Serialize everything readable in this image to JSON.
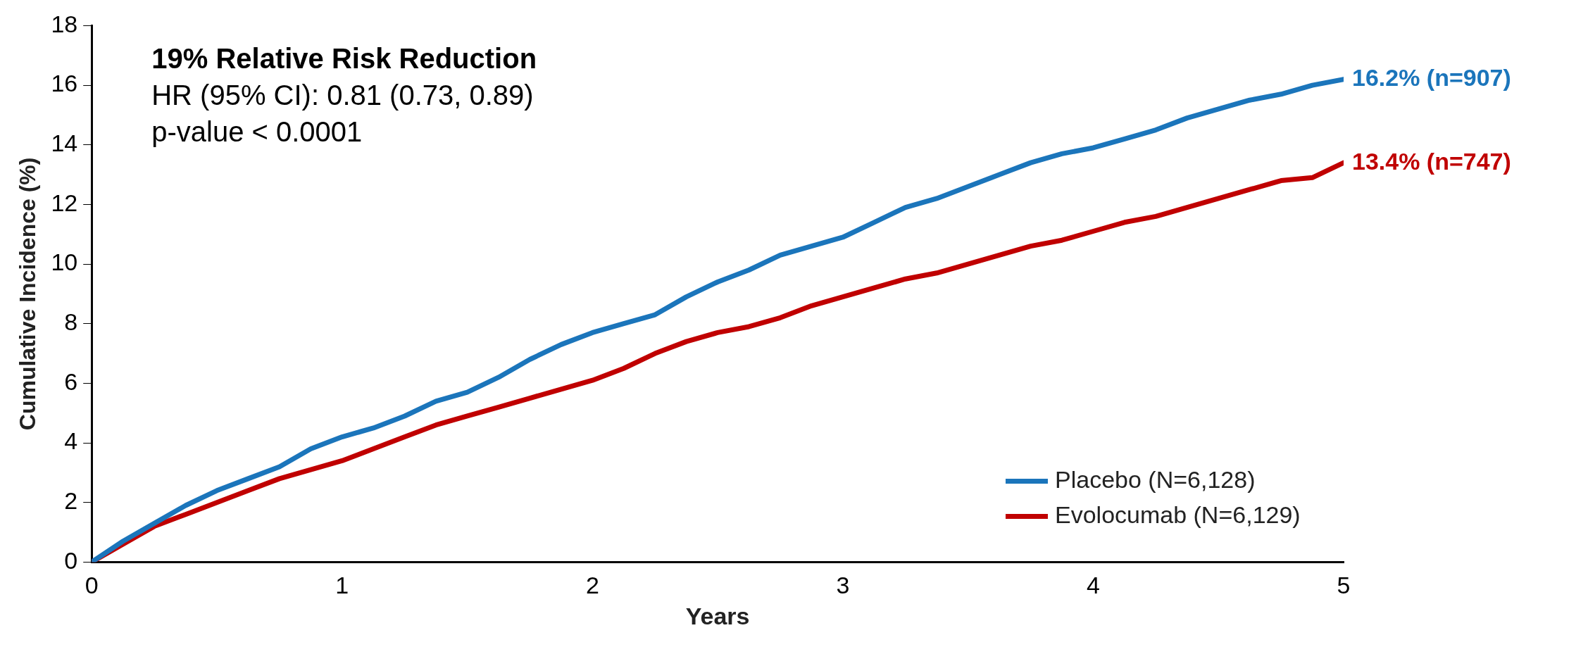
{
  "chart_data": {
    "type": "line",
    "xlabel": "Years",
    "ylabel": "Cumulative Incidence (%)",
    "xlim": [
      0,
      5
    ],
    "xticks": [
      0,
      1,
      2,
      3,
      4,
      5
    ],
    "ylim": [
      0,
      18
    ],
    "yticks": [
      0,
      2,
      4,
      6,
      8,
      10,
      12,
      14,
      16,
      18
    ],
    "grid": false,
    "legend": "bottom right",
    "marker": "none",
    "line_style": "solid",
    "x": [
      0,
      0.125,
      0.25,
      0.375,
      0.5,
      0.625,
      0.75,
      0.875,
      1,
      1.125,
      1.25,
      1.375,
      1.5,
      1.625,
      1.75,
      1.875,
      2,
      2.125,
      2.25,
      2.375,
      2.5,
      2.625,
      2.75,
      2.875,
      3,
      3.125,
      3.25,
      3.375,
      3.5,
      3.625,
      3.75,
      3.875,
      4,
      4.125,
      4.25,
      4.375,
      4.5,
      4.625,
      4.75,
      4.875,
      5
    ],
    "series": [
      {
        "name": "Placebo (N=6,128)",
        "color": "#1b75bb",
        "values": [
          0,
          0.7,
          1.3,
          1.9,
          2.4,
          2.8,
          3.2,
          3.8,
          4.2,
          4.5,
          4.9,
          5.4,
          5.7,
          6.2,
          6.8,
          7.3,
          7.7,
          8.0,
          8.3,
          8.9,
          9.4,
          9.8,
          10.3,
          10.6,
          10.9,
          11.4,
          11.9,
          12.2,
          12.6,
          13.0,
          13.4,
          13.7,
          13.9,
          14.2,
          14.5,
          14.9,
          15.2,
          15.5,
          15.7,
          16.0,
          16.2
        ]
      },
      {
        "name": "Evolocumab (N=6,129)",
        "color": "#c00000",
        "values": [
          0,
          0.6,
          1.2,
          1.6,
          2.0,
          2.4,
          2.8,
          3.1,
          3.4,
          3.8,
          4.2,
          4.6,
          4.9,
          5.2,
          5.5,
          5.8,
          6.1,
          6.5,
          7.0,
          7.4,
          7.7,
          7.9,
          8.2,
          8.6,
          8.9,
          9.2,
          9.5,
          9.7,
          10.0,
          10.3,
          10.6,
          10.8,
          11.1,
          11.4,
          11.6,
          11.9,
          12.2,
          12.5,
          12.8,
          12.9,
          13.4
        ]
      }
    ],
    "annotations": [
      "19% Relative Risk Reduction",
      "HR (95% CI): 0.81 (0.73, 0.89)",
      "p-value < 0.0001",
      {
        "text": "16.2% (n=907)",
        "x": 5,
        "y": 16.2
      },
      {
        "text": "13.4% (n=747)",
        "x": 5,
        "y": 13.4
      }
    ]
  }
}
